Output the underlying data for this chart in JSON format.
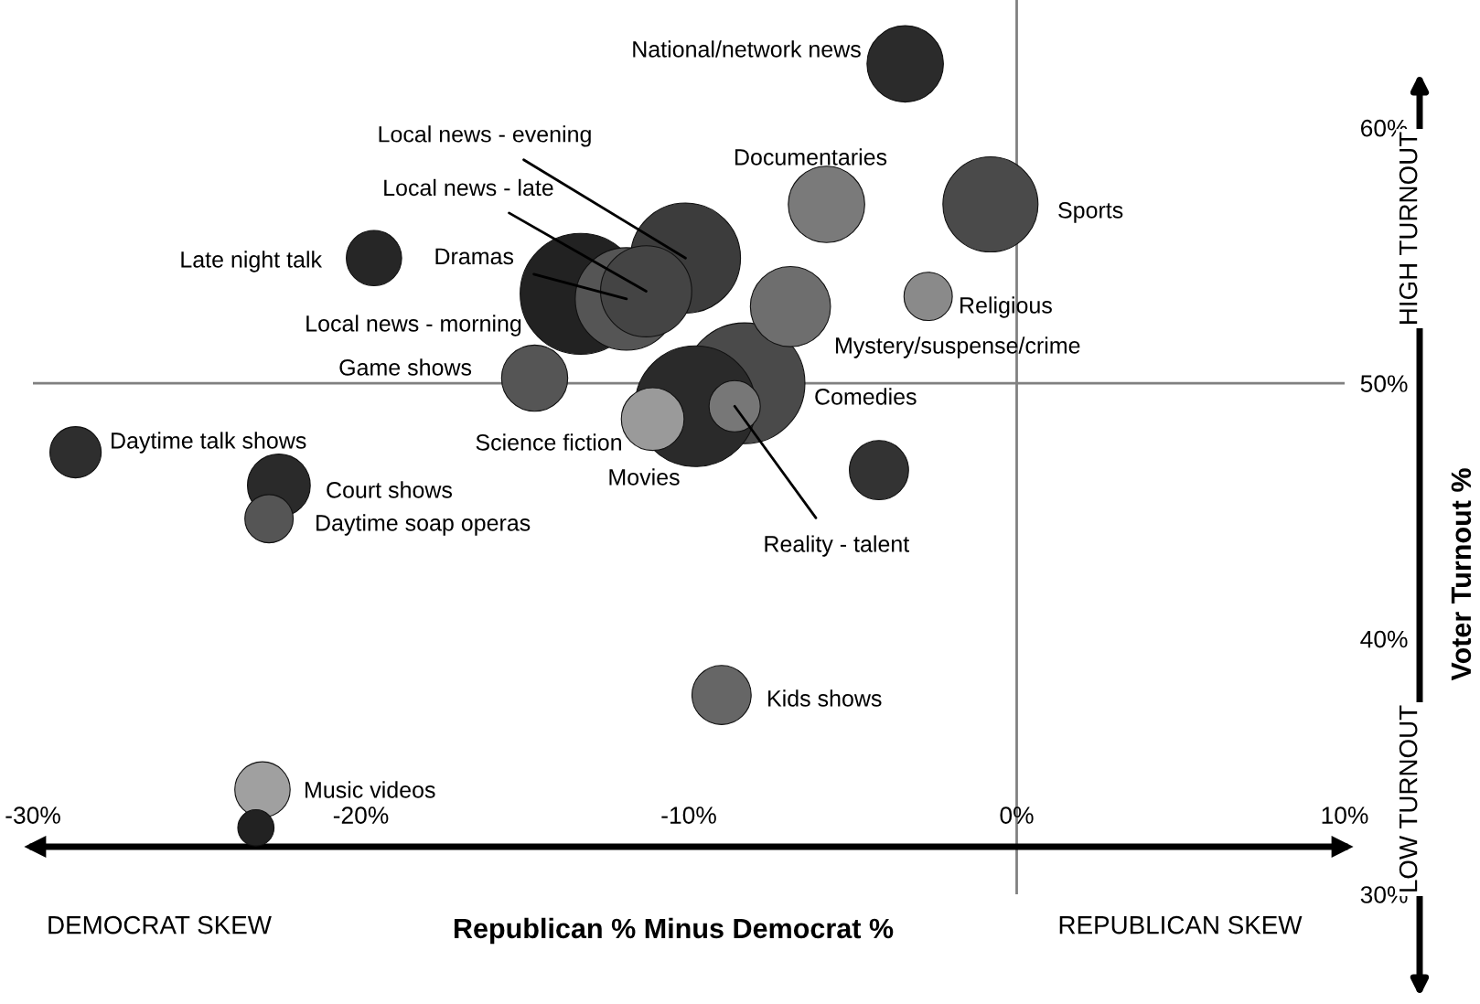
{
  "chart_data": {
    "type": "bubble",
    "xlabel": "Republican % Minus Democrat %",
    "ylabel": "Voter Turnout %",
    "x": [
      -3.4,
      -0.8,
      -5.8,
      -2.7,
      -6.9,
      -10.1,
      -19.6,
      -11.3,
      -11.9,
      -13.3,
      -14.7,
      -8.3,
      -9.8,
      -11.1,
      -8.6,
      -4.2,
      -28.7,
      -22.5,
      -22.8,
      -9.0,
      -23.0,
      -23.2
    ],
    "values": [
      62.5,
      57.0,
      57.0,
      53.4,
      53.0,
      54.9,
      54.9,
      53.6,
      53.3,
      53.5,
      50.2,
      50.0,
      49.1,
      48.6,
      49.1,
      46.6,
      47.3,
      46.0,
      44.7,
      37.8,
      34.1,
      32.6
    ],
    "sizes": [
      0.4,
      0.62,
      0.4,
      0.16,
      0.44,
      0.83,
      0.21,
      0.57,
      0.72,
      1,
      0.3,
      1,
      1,
      0.27,
      0.18,
      0.24,
      0.18,
      0.27,
      0.16,
      0.24,
      0.21,
      0.09
    ],
    "colors": [
      "#2b2b2b",
      "#4a4a4a",
      "#7a7a7a",
      "#8a8a8a",
      "#6e6e6e",
      "#3c3c3c",
      "#262626",
      "#444444",
      "#555555",
      "#222222",
      "#555555",
      "#4a4a4a",
      "#2a2a2a",
      "#9a9a9a",
      "#777777",
      "#333333",
      "#2e2e2e",
      "#2a2a2a",
      "#555555",
      "#666666",
      "#a0a0a0",
      "#222222"
    ],
    "xlim": [
      -30,
      10
    ],
    "ylim": [
      30,
      65
    ],
    "xticks": [
      {
        "value": -30,
        "label": "-30%"
      },
      {
        "value": -20,
        "label": "-20%"
      },
      {
        "value": -10,
        "label": "-10%"
      },
      {
        "value": 0,
        "label": "0%"
      },
      {
        "value": 10,
        "label": "10%"
      }
    ],
    "yticks": [
      {
        "value": 30,
        "label": "30%"
      },
      {
        "value": 40,
        "label": "40%"
      },
      {
        "value": 50,
        "label": "50%"
      },
      {
        "value": 60,
        "label": "60%"
      }
    ],
    "ref_lines": [
      {
        "axis": "x",
        "value": 0,
        "color": "#808080"
      },
      {
        "axis": "y",
        "value": 50,
        "color": "#808080"
      }
    ],
    "grid": false,
    "annotations": [
      "National/network news",
      "Sports",
      "Documentaries",
      "Religious",
      "Mystery/suspense/crime",
      {
        "text": "Local news - evening",
        "x": -10.1,
        "y": 54.9
      },
      "Late night talk",
      {
        "text": "Local news - late",
        "x": -11.3,
        "y": 53.6
      },
      {
        "text": "Dramas",
        "x": -11.9,
        "y": 53.3
      },
      "Local news - morning",
      "Game shows",
      "Comedies",
      "Movies",
      "Science fiction",
      {
        "text": "Reality - talent",
        "x": -8.6,
        "y": 49.1
      },
      "Daytime talk shows",
      "Court shows",
      "Daytime soap operas",
      "Kids shows",
      "Music videos",
      "DEMOCRAT SKEW",
      "REPUBLICAN SKEW",
      "HIGH TURNOUT",
      "LOW TURNOUT"
    ]
  }
}
